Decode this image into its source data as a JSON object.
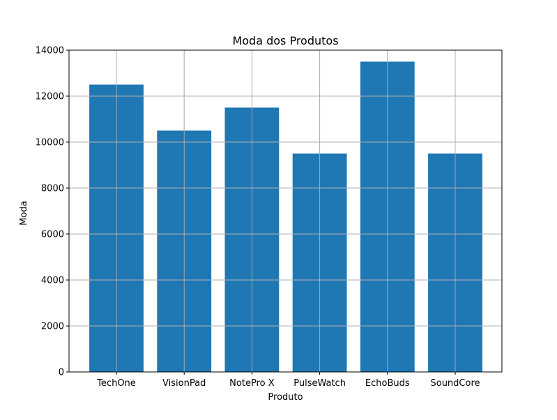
{
  "chart_data": {
    "type": "bar",
    "title": "Moda dos Produtos",
    "xlabel": "Produto",
    "ylabel": "Moda",
    "categories": [
      "TechOne",
      "VisionPad",
      "NotePro X",
      "PulseWatch",
      "EchoBuds",
      "SoundCore"
    ],
    "values": [
      12500,
      10500,
      11500,
      9500,
      13500,
      9500
    ],
    "ylim": [
      0,
      14000
    ],
    "yticks": [
      0,
      2000,
      4000,
      6000,
      8000,
      10000,
      12000,
      14000
    ],
    "grid": true,
    "legend": "none",
    "colors": {
      "bar": "#1f77b4",
      "grid": "#b0b0b0",
      "axis": "#000000"
    }
  }
}
